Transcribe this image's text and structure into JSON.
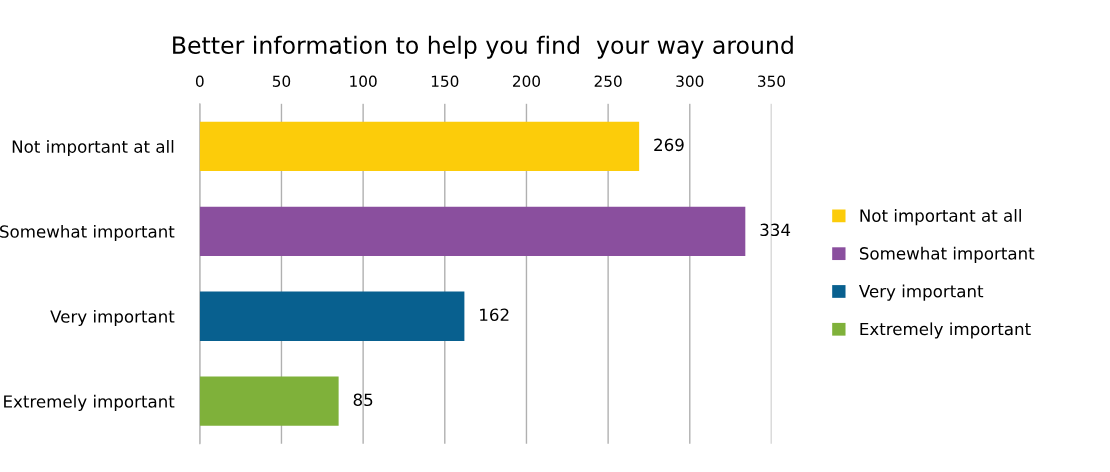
{
  "chart_data": {
    "type": "bar",
    "orientation": "horizontal",
    "title": "Better information to help you find  your way around",
    "categories": [
      "Not important at all",
      "Somewhat important",
      "Very important",
      "Extremely important"
    ],
    "series": [
      {
        "name": "Not important at all",
        "color": "#fccc0a",
        "values": [
          269,
          null,
          null,
          null
        ]
      },
      {
        "name": "Somewhat important",
        "color": "#8a4f9e",
        "values": [
          null,
          334,
          null,
          null
        ]
      },
      {
        "name": "Very important",
        "color": "#08608f",
        "values": [
          null,
          null,
          162,
          null
        ]
      },
      {
        "name": "Extremely important",
        "color": "#7fb13a",
        "values": [
          null,
          null,
          null,
          85
        ]
      }
    ],
    "xlim": [
      0,
      350
    ],
    "xticks": [
      0,
      50,
      100,
      150,
      200,
      250,
      300,
      350
    ],
    "grid": "x",
    "legend": "right",
    "data_labels": true
  }
}
